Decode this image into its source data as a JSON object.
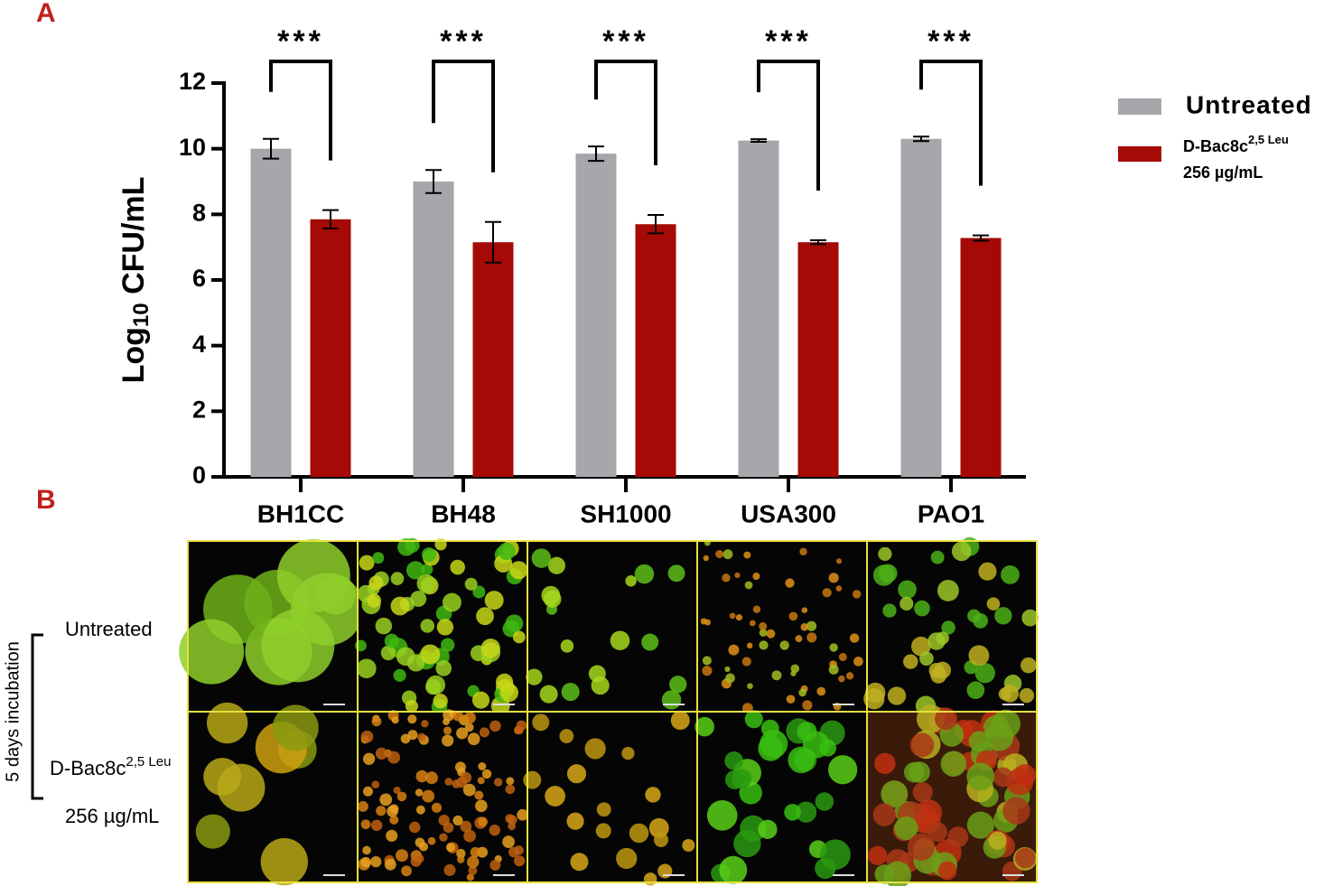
{
  "chart_data": {
    "type": "bar",
    "panel_a_label": "A",
    "panel_b_label": "B",
    "y_label": {
      "main": "Log",
      "subscript": "10",
      "rest": " CFU/mL"
    },
    "categories": [
      "BH1CC",
      "BH48",
      "SH1000",
      "USA300",
      "PAO1"
    ],
    "series": [
      {
        "name": "Untreated",
        "color": "#a7a6ab",
        "values": [
          10.0,
          9.0,
          9.85,
          10.25,
          10.3
        ],
        "errors": [
          0.3,
          0.35,
          0.22,
          0.04,
          0.07
        ]
      },
      {
        "name": "D-Bac8c",
        "name_superscript": "2,5 Leu",
        "name_line2": "256 µg/mL",
        "color": "#a50a06",
        "values": [
          7.85,
          7.15,
          7.7,
          7.15,
          7.28
        ],
        "errors": [
          0.28,
          0.62,
          0.28,
          0.06,
          0.08
        ]
      }
    ],
    "significance": [
      "***",
      "***",
      "***",
      "***",
      "***"
    ],
    "ylim": [
      0,
      12
    ],
    "yticks": [
      0,
      2,
      4,
      6,
      8,
      10,
      12
    ],
    "legend": "right",
    "images": {
      "row_labels": [
        "Untreated",
        "D-Bac8c",
        "256 µg/mL"
      ],
      "row_label_superscript": "2,5 Leu",
      "side_label": "5 days incubation"
    }
  }
}
